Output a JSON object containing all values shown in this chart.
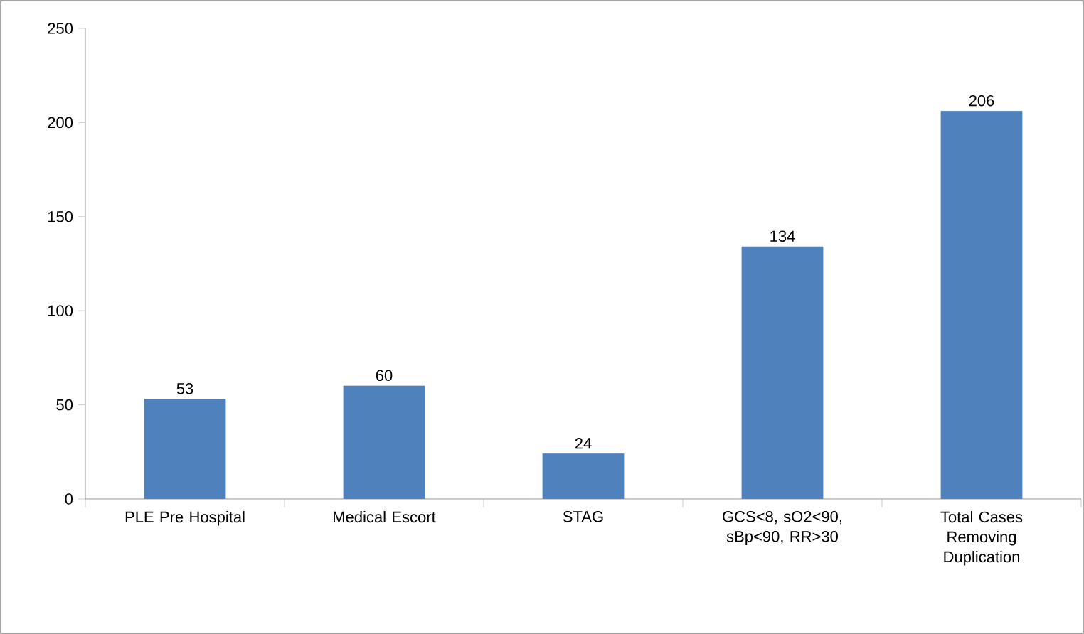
{
  "chart_data": {
    "type": "bar",
    "categories": [
      "PLE Pre Hospital",
      "Medical Escort",
      "STAG",
      "GCS<8, sO2<90, sBp<90, RR>30",
      "Total Cases Removing Duplication"
    ],
    "values": [
      53,
      60,
      24,
      134,
      206
    ],
    "color": "#4f81bd",
    "ylim": [
      0,
      250
    ],
    "yticks": [
      0,
      50,
      100,
      150,
      200,
      250
    ],
    "data_labels": true,
    "grid": false
  }
}
